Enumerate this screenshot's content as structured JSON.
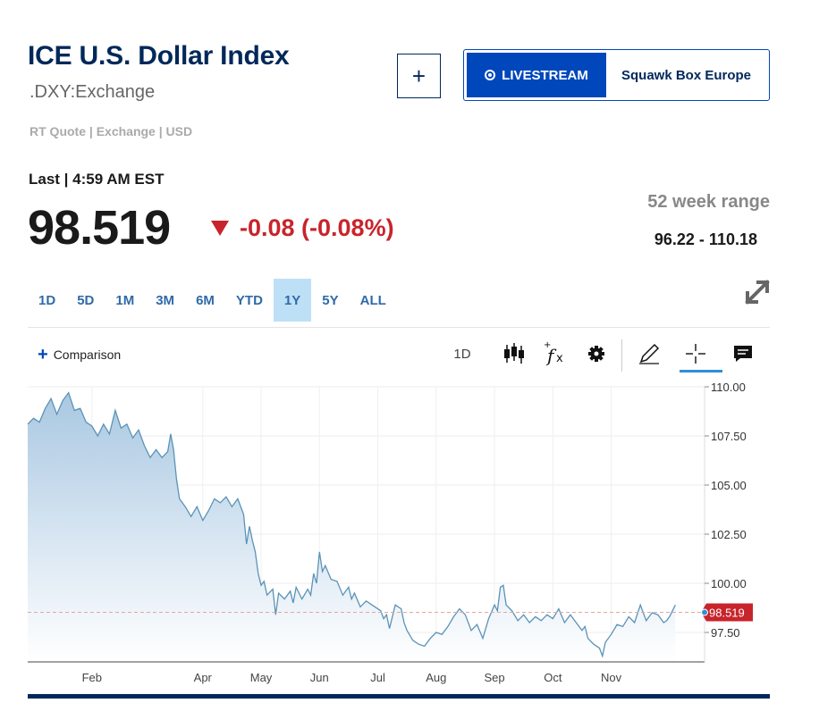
{
  "header": {
    "title": "ICE U.S. Dollar Index",
    "symbol": ".DXY:Exchange",
    "quote_meta": "RT Quote | Exchange | USD",
    "add_label": "+"
  },
  "livestream": {
    "button_label": "LIVESTREAM",
    "show_name": "Squawk Box Europe"
  },
  "quote": {
    "last_label": "Last | 4:59 AM EST",
    "price": "98.519",
    "change": "-0.08 (-0.08%)",
    "direction": "down"
  },
  "range": {
    "label": "52 week range",
    "value": "96.22 - 110.18"
  },
  "period_tabs": [
    {
      "label": "1D",
      "active": false
    },
    {
      "label": "5D",
      "active": false
    },
    {
      "label": "1M",
      "active": false
    },
    {
      "label": "3M",
      "active": false
    },
    {
      "label": "6M",
      "active": false
    },
    {
      "label": "YTD",
      "active": false
    },
    {
      "label": "1Y",
      "active": true
    },
    {
      "label": "5Y",
      "active": false
    },
    {
      "label": "ALL",
      "active": false
    }
  ],
  "toolbar": {
    "comparison_label": "Comparison",
    "interval_label": "1D",
    "icons": [
      "candlestick-icon",
      "function-icon",
      "gear-icon",
      "pencil-icon",
      "crosshair-icon",
      "comment-icon"
    ]
  },
  "colors": {
    "line": "#5a93b6",
    "area_top": "#a9c8e2",
    "area_bottom": "#ffffff",
    "last_price": "#c8242b",
    "brand": "#00285a",
    "accent": "#0047bb"
  },
  "chart_data": {
    "type": "area",
    "y_ticks": [
      "110.00",
      "107.50",
      "105.00",
      "102.50",
      "100.00",
      "97.50"
    ],
    "ylim": [
      96.0,
      110.0
    ],
    "x_ticks": [
      {
        "label": "Feb",
        "x": 1.1
      },
      {
        "label": "Apr",
        "x": 3.0
      },
      {
        "label": "May",
        "x": 4.0
      },
      {
        "label": "Jun",
        "x": 5.0
      },
      {
        "label": "Jul",
        "x": 6.0
      },
      {
        "label": "Aug",
        "x": 7.0
      },
      {
        "label": "Sep",
        "x": 8.0
      },
      {
        "label": "Oct",
        "x": 9.0
      },
      {
        "label": "Nov",
        "x": 10.0
      }
    ],
    "xlim": [
      0.0,
      11.6
    ],
    "last_value_label": "98.519",
    "last_value": 98.52,
    "grid": true,
    "series": [
      {
        "points": [
          [
            0.0,
            108.1
          ],
          [
            0.1,
            108.4
          ],
          [
            0.2,
            108.2
          ],
          [
            0.3,
            108.9
          ],
          [
            0.4,
            109.4
          ],
          [
            0.5,
            108.6
          ],
          [
            0.6,
            109.3
          ],
          [
            0.7,
            109.7
          ],
          [
            0.8,
            108.8
          ],
          [
            0.9,
            108.9
          ],
          [
            1.0,
            108.2
          ],
          [
            1.1,
            108.0
          ],
          [
            1.2,
            107.5
          ],
          [
            1.3,
            108.1
          ],
          [
            1.4,
            107.6
          ],
          [
            1.5,
            108.8
          ],
          [
            1.6,
            107.9
          ],
          [
            1.7,
            108.1
          ],
          [
            1.8,
            107.4
          ],
          [
            1.9,
            107.8
          ],
          [
            2.0,
            107.0
          ],
          [
            2.1,
            106.4
          ],
          [
            2.2,
            106.8
          ],
          [
            2.3,
            106.4
          ],
          [
            2.4,
            106.7
          ],
          [
            2.45,
            107.6
          ],
          [
            2.5,
            106.8
          ],
          [
            2.55,
            105.3
          ],
          [
            2.6,
            104.3
          ],
          [
            2.7,
            103.9
          ],
          [
            2.8,
            103.4
          ],
          [
            2.9,
            103.9
          ],
          [
            3.0,
            103.2
          ],
          [
            3.1,
            103.7
          ],
          [
            3.2,
            104.3
          ],
          [
            3.3,
            104.1
          ],
          [
            3.4,
            104.4
          ],
          [
            3.5,
            103.9
          ],
          [
            3.6,
            104.3
          ],
          [
            3.7,
            103.5
          ],
          [
            3.75,
            102.0
          ],
          [
            3.8,
            102.9
          ],
          [
            3.85,
            102.2
          ],
          [
            3.9,
            101.6
          ],
          [
            3.95,
            100.5
          ],
          [
            4.0,
            99.9
          ],
          [
            4.05,
            100.1
          ],
          [
            4.1,
            99.4
          ],
          [
            4.2,
            99.7
          ],
          [
            4.25,
            98.4
          ],
          [
            4.3,
            99.5
          ],
          [
            4.4,
            99.2
          ],
          [
            4.5,
            99.6
          ],
          [
            4.55,
            99.0
          ],
          [
            4.6,
            99.8
          ],
          [
            4.7,
            99.2
          ],
          [
            4.8,
            99.7
          ],
          [
            4.85,
            99.4
          ],
          [
            4.9,
            100.5
          ],
          [
            4.95,
            100.0
          ],
          [
            5.0,
            101.6
          ],
          [
            5.05,
            100.6
          ],
          [
            5.1,
            100.9
          ],
          [
            5.2,
            100.2
          ],
          [
            5.3,
            100.1
          ],
          [
            5.4,
            99.4
          ],
          [
            5.5,
            99.8
          ],
          [
            5.55,
            99.2
          ],
          [
            5.6,
            99.5
          ],
          [
            5.7,
            98.8
          ],
          [
            5.8,
            99.1
          ],
          [
            5.9,
            98.9
          ],
          [
            6.0,
            98.7
          ],
          [
            6.05,
            98.6
          ],
          [
            6.1,
            98.2
          ],
          [
            6.15,
            98.4
          ],
          [
            6.2,
            97.7
          ],
          [
            6.3,
            98.9
          ],
          [
            6.4,
            98.7
          ],
          [
            6.45,
            98.0
          ],
          [
            6.5,
            97.6
          ],
          [
            6.6,
            97.1
          ],
          [
            6.7,
            96.9
          ],
          [
            6.8,
            96.8
          ],
          [
            6.9,
            97.2
          ],
          [
            7.0,
            97.5
          ],
          [
            7.1,
            97.4
          ],
          [
            7.2,
            97.8
          ],
          [
            7.3,
            98.3
          ],
          [
            7.4,
            98.7
          ],
          [
            7.5,
            98.4
          ],
          [
            7.6,
            97.6
          ],
          [
            7.7,
            97.9
          ],
          [
            7.8,
            97.2
          ],
          [
            7.9,
            98.2
          ],
          [
            8.0,
            98.9
          ],
          [
            8.05,
            98.6
          ],
          [
            8.1,
            99.8
          ],
          [
            8.15,
            99.9
          ],
          [
            8.2,
            98.9
          ],
          [
            8.3,
            98.6
          ],
          [
            8.4,
            98.1
          ],
          [
            8.5,
            98.4
          ],
          [
            8.6,
            98.0
          ],
          [
            8.7,
            98.3
          ],
          [
            8.8,
            98.1
          ],
          [
            8.9,
            98.4
          ],
          [
            9.0,
            98.2
          ],
          [
            9.1,
            98.7
          ],
          [
            9.2,
            98.0
          ],
          [
            9.3,
            98.4
          ],
          [
            9.4,
            98.0
          ],
          [
            9.5,
            97.6
          ],
          [
            9.55,
            97.8
          ],
          [
            9.6,
            97.2
          ],
          [
            9.7,
            96.9
          ],
          [
            9.8,
            96.7
          ],
          [
            9.85,
            96.3
          ],
          [
            9.9,
            97.0
          ],
          [
            10.0,
            97.4
          ],
          [
            10.1,
            97.9
          ],
          [
            10.2,
            97.8
          ],
          [
            10.3,
            98.3
          ],
          [
            10.4,
            98.0
          ],
          [
            10.5,
            98.9
          ],
          [
            10.6,
            98.1
          ],
          [
            10.7,
            98.5
          ],
          [
            10.8,
            98.4
          ],
          [
            10.9,
            98.0
          ],
          [
            10.95,
            98.1
          ],
          [
            11.0,
            98.3
          ],
          [
            11.1,
            98.9
          ]
        ]
      }
    ]
  }
}
